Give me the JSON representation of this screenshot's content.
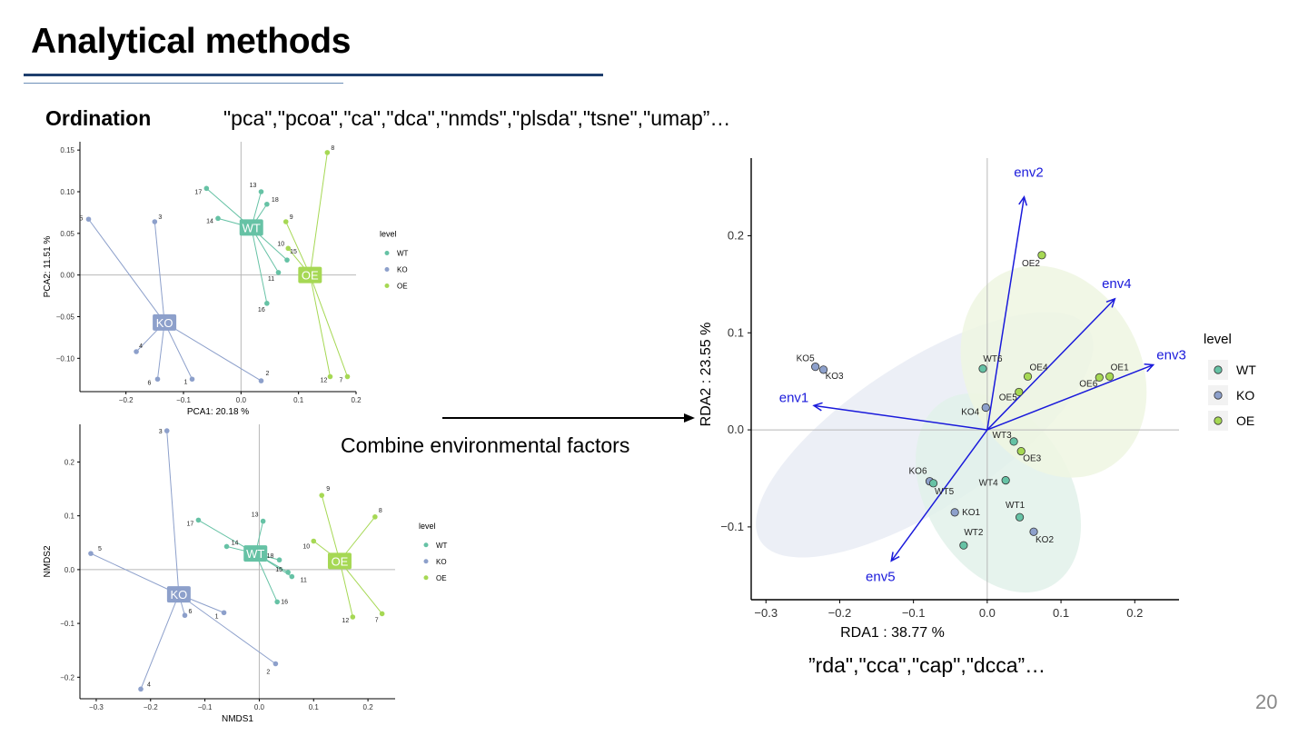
{
  "title": "Analytical methods",
  "subtitle": "Ordination",
  "ordination_methods": "\"pca\",\"pcoa\",\"ca\",\"dca\",\"nmds\",\"plsda\",\"tsne\",\"umap”…",
  "combine_label": "Combine environmental factors",
  "constrained_methods": "”rda\",\"cca\",\"cap\",\"dcca”…",
  "page_number": "20",
  "colors": {
    "WT": "#66c2a5",
    "KO": "#8da0cb",
    "OE": "#a6d854",
    "arrow": "#1a1adb"
  },
  "chart_data": [
    {
      "type": "scatter",
      "xlabel": "PCA1: 20.18 %",
      "ylabel": "PCA2: 11.51 %",
      "xlim": [
        -0.28,
        0.2
      ],
      "ylim": [
        -0.14,
        0.16
      ],
      "xticks": [
        "-0.2",
        "-0.1",
        "0.0",
        "0.1",
        "0.2"
      ],
      "yticks": [
        "0.15",
        "0.10",
        "0.05",
        "0.00",
        "-0.05",
        "-0.10"
      ],
      "legend_title": "level",
      "legend": [
        "WT",
        "KO",
        "OE"
      ],
      "centroids": [
        {
          "group": "WT",
          "x": 0.018,
          "y": 0.057
        },
        {
          "group": "KO",
          "x": -0.133,
          "y": -0.057
        },
        {
          "group": "OE",
          "x": 0.12,
          "y": 0.0
        }
      ],
      "points": [
        {
          "label": "13",
          "group": "WT",
          "x": 0.035,
          "y": 0.1
        },
        {
          "label": "18",
          "group": "WT",
          "x": 0.045,
          "y": 0.085
        },
        {
          "label": "17",
          "group": "WT",
          "x": -0.06,
          "y": 0.104
        },
        {
          "label": "14",
          "group": "WT",
          "x": -0.04,
          "y": 0.068
        },
        {
          "label": "15",
          "group": "WT",
          "x": 0.08,
          "y": 0.018
        },
        {
          "label": "11",
          "group": "WT",
          "x": 0.065,
          "y": 0.003
        },
        {
          "label": "16",
          "group": "WT",
          "x": 0.045,
          "y": -0.034
        },
        {
          "label": "5",
          "group": "KO",
          "x": -0.265,
          "y": 0.067
        },
        {
          "label": "3",
          "group": "KO",
          "x": -0.15,
          "y": 0.064
        },
        {
          "label": "4",
          "group": "KO",
          "x": -0.182,
          "y": -0.092
        },
        {
          "label": "6",
          "group": "KO",
          "x": -0.145,
          "y": -0.125
        },
        {
          "label": "1",
          "group": "KO",
          "x": -0.085,
          "y": -0.125
        },
        {
          "label": "2",
          "group": "KO",
          "x": 0.035,
          "y": -0.127
        },
        {
          "label": "8",
          "group": "OE",
          "x": 0.15,
          "y": 0.147
        },
        {
          "label": "9",
          "group": "OE",
          "x": 0.078,
          "y": 0.064
        },
        {
          "label": "10",
          "group": "OE",
          "x": 0.082,
          "y": 0.032
        },
        {
          "label": "12",
          "group": "OE",
          "x": 0.155,
          "y": -0.122
        },
        {
          "label": "7",
          "group": "OE",
          "x": 0.185,
          "y": -0.122
        }
      ]
    },
    {
      "type": "scatter",
      "xlabel": "NMDS1",
      "ylabel": "NMDS2",
      "xlim": [
        -0.33,
        0.25
      ],
      "ylim": [
        -0.24,
        0.27
      ],
      "xticks": [
        "-0.3",
        "-0.2",
        "-0.1",
        "0.0",
        "0.1",
        "0.2"
      ],
      "yticks": [
        "0.2",
        "0.1",
        "0.0",
        "-0.1",
        "-0.2"
      ],
      "legend_title": "level",
      "legend": [
        "WT",
        "KO",
        "OE"
      ],
      "centroids": [
        {
          "group": "WT",
          "x": -0.007,
          "y": 0.03
        },
        {
          "group": "KO",
          "x": -0.148,
          "y": -0.046
        },
        {
          "group": "OE",
          "x": 0.148,
          "y": 0.016
        }
      ],
      "points": [
        {
          "label": "13",
          "group": "WT",
          "x": 0.007,
          "y": 0.09
        },
        {
          "label": "18",
          "group": "WT",
          "x": 0.037,
          "y": 0.018
        },
        {
          "label": "17",
          "group": "WT",
          "x": -0.112,
          "y": 0.092
        },
        {
          "label": "14",
          "group": "WT",
          "x": -0.06,
          "y": 0.043
        },
        {
          "label": "15",
          "group": "WT",
          "x": 0.053,
          "y": -0.005
        },
        {
          "label": "11",
          "group": "WT",
          "x": 0.06,
          "y": -0.013
        },
        {
          "label": "16",
          "group": "WT",
          "x": 0.033,
          "y": -0.06
        },
        {
          "label": "3",
          "group": "KO",
          "x": -0.17,
          "y": 0.258
        },
        {
          "label": "5",
          "group": "KO",
          "x": -0.31,
          "y": 0.03
        },
        {
          "label": "6",
          "group": "KO",
          "x": -0.137,
          "y": -0.085
        },
        {
          "label": "1",
          "group": "KO",
          "x": -0.065,
          "y": -0.08
        },
        {
          "label": "4",
          "group": "KO",
          "x": -0.218,
          "y": -0.222
        },
        {
          "label": "2",
          "group": "KO",
          "x": 0.03,
          "y": -0.175
        },
        {
          "label": "9",
          "group": "OE",
          "x": 0.115,
          "y": 0.138
        },
        {
          "label": "8",
          "group": "OE",
          "x": 0.213,
          "y": 0.098
        },
        {
          "label": "10",
          "group": "OE",
          "x": 0.1,
          "y": 0.053
        },
        {
          "label": "12",
          "group": "OE",
          "x": 0.172,
          "y": -0.088
        },
        {
          "label": "7",
          "group": "OE",
          "x": 0.226,
          "y": -0.082
        }
      ]
    },
    {
      "type": "scatter",
      "xlabel": "RDA1 :  38.77 %",
      "ylabel": "RDA2 :  23.55 %",
      "xlim": [
        -0.32,
        0.26
      ],
      "ylim": [
        -0.175,
        0.28
      ],
      "xticks": [
        "-0.3",
        "-0.2",
        "-0.1",
        "0.0",
        "0.1",
        "0.2"
      ],
      "yticks": [
        "0.2",
        "0.1",
        "0.0",
        "-0.1"
      ],
      "legend_title": "level",
      "legend": [
        "WT",
        "KO",
        "OE"
      ],
      "points": [
        {
          "label": "KO5",
          "group": "KO",
          "x": -0.233,
          "y": 0.065
        },
        {
          "label": "KO3",
          "group": "KO",
          "x": -0.222,
          "y": 0.062
        },
        {
          "label": "KO4",
          "group": "KO",
          "x": -0.002,
          "y": 0.023
        },
        {
          "label": "KO6",
          "group": "KO",
          "x": -0.078,
          "y": -0.053
        },
        {
          "label": "KO1",
          "group": "KO",
          "x": -0.044,
          "y": -0.085
        },
        {
          "label": "KO2",
          "group": "KO",
          "x": 0.063,
          "y": -0.105
        },
        {
          "label": "WT6",
          "group": "WT",
          "x": -0.006,
          "y": 0.063
        },
        {
          "label": "WT3",
          "group": "WT",
          "x": 0.036,
          "y": -0.012
        },
        {
          "label": "WT5",
          "group": "WT",
          "x": -0.073,
          "y": -0.055
        },
        {
          "label": "WT4",
          "group": "WT",
          "x": 0.025,
          "y": -0.052
        },
        {
          "label": "WT1",
          "group": "WT",
          "x": 0.044,
          "y": -0.09
        },
        {
          "label": "WT2",
          "group": "WT",
          "x": -0.032,
          "y": -0.119
        },
        {
          "label": "OE2",
          "group": "OE",
          "x": 0.074,
          "y": 0.18
        },
        {
          "label": "OE4",
          "group": "OE",
          "x": 0.055,
          "y": 0.055
        },
        {
          "label": "OE5",
          "group": "OE",
          "x": 0.043,
          "y": 0.039
        },
        {
          "label": "OE3",
          "group": "OE",
          "x": 0.046,
          "y": -0.022
        },
        {
          "label": "OE1",
          "group": "OE",
          "x": 0.166,
          "y": 0.055
        },
        {
          "label": "OE6",
          "group": "OE",
          "x": 0.152,
          "y": 0.054
        }
      ],
      "arrows": [
        {
          "label": "env1",
          "x": -0.235,
          "y": 0.025
        },
        {
          "label": "env2",
          "x": 0.05,
          "y": 0.24
        },
        {
          "label": "env3",
          "x": 0.225,
          "y": 0.067
        },
        {
          "label": "env4",
          "x": 0.173,
          "y": 0.135
        },
        {
          "label": "env5",
          "x": -0.13,
          "y": -0.135
        }
      ],
      "ellipses": [
        {
          "group": "KO",
          "cx": -0.085,
          "cy": -0.005,
          "rx": 0.265,
          "ry": 0.075,
          "angle": -33
        },
        {
          "group": "WT",
          "cx": 0.015,
          "cy": -0.065,
          "rx": 0.145,
          "ry": 0.075,
          "angle": 60
        },
        {
          "group": "OE",
          "cx": 0.09,
          "cy": 0.06,
          "rx": 0.15,
          "ry": 0.09,
          "angle": 62
        }
      ]
    }
  ]
}
